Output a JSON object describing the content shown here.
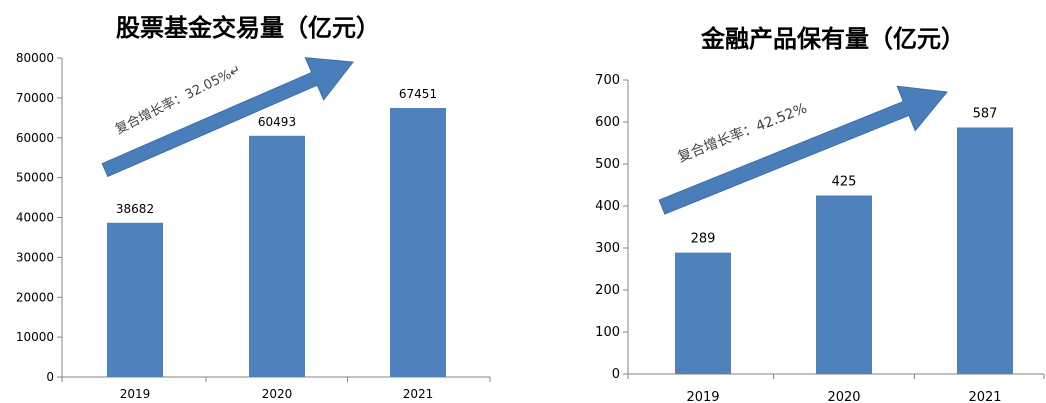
{
  "chart_data": [
    {
      "type": "bar",
      "title": "股票基金交易量（亿元）",
      "xlabel": "",
      "ylabel": "",
      "categories": [
        "2019",
        "2020",
        "2021"
      ],
      "values": [
        38682,
        60493,
        67451
      ],
      "data_labels": [
        "38682",
        "60493",
        "67451"
      ],
      "ylim": [
        0,
        80000
      ],
      "yticks": [
        "0",
        "10000",
        "20000",
        "30000",
        "40000",
        "50000",
        "60000",
        "70000",
        "80000"
      ],
      "annotation": "复合增长率：32.05%↵",
      "bar_color": "#4f81bd",
      "arrow_color": "#4a7ebb",
      "grid": false
    },
    {
      "type": "bar",
      "title": "金融产品保有量（亿元）",
      "xlabel": "",
      "ylabel": "",
      "categories": [
        "2019",
        "2020",
        "2021"
      ],
      "values": [
        289,
        425,
        587
      ],
      "data_labels": [
        "289",
        "425",
        "587"
      ],
      "ylim": [
        0,
        700
      ],
      "yticks": [
        "0",
        "100",
        "200",
        "300",
        "400",
        "500",
        "600",
        "700"
      ],
      "annotation": "复合增长率：42.52%",
      "bar_color": "#4f81bd",
      "arrow_color": "#4a7ebb",
      "grid": false
    }
  ]
}
